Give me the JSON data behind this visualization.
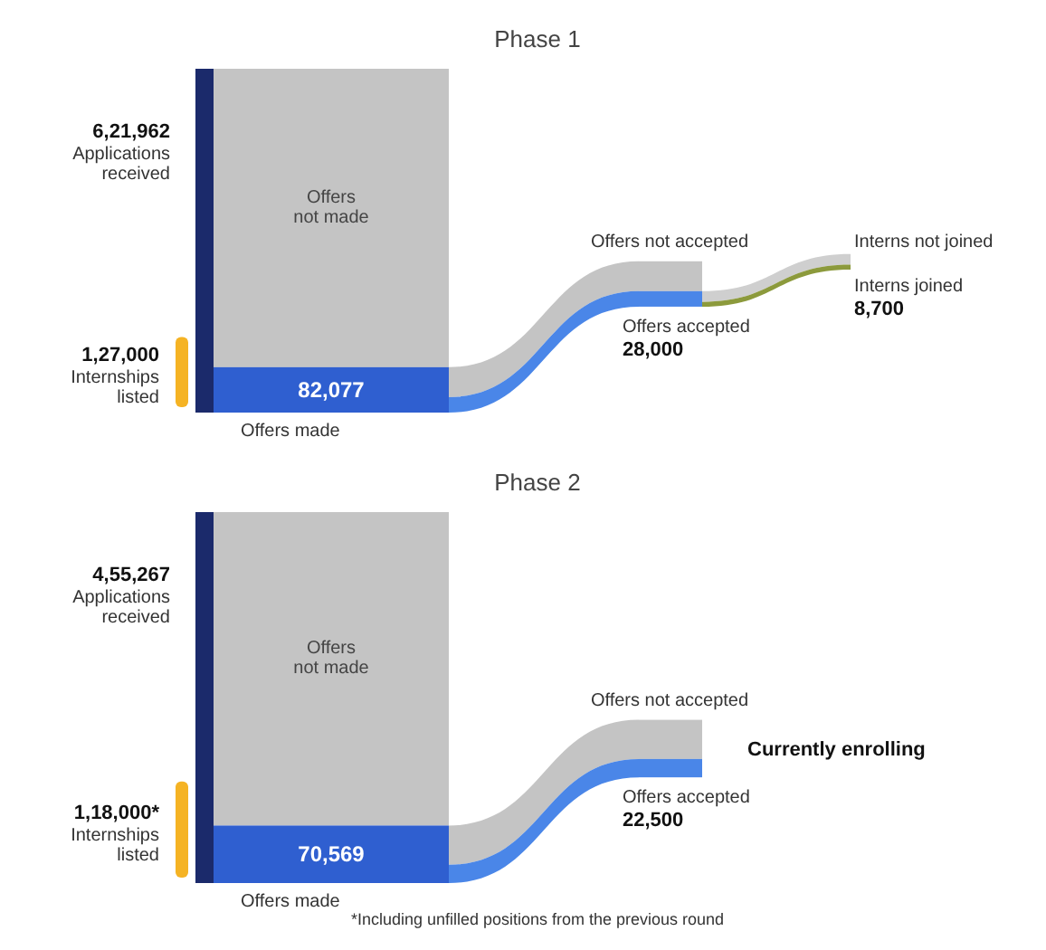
{
  "chart_data": [
    {
      "type": "other",
      "title": "Phase 1",
      "categories": [
        "Applications received",
        "Internships listed",
        "Offers made",
        "Offers not made",
        "Offers accepted",
        "Offers not accepted",
        "Interns joined",
        "Interns not joined"
      ],
      "values": [
        621962,
        127000,
        82077,
        null,
        28000,
        null,
        8700,
        null
      ],
      "value_labels": [
        "6,21,962",
        "1,27,000",
        "82,077",
        null,
        "28,000",
        null,
        "8,700",
        null
      ],
      "colors": [
        "#1b2a6b",
        "#f5b324",
        "#2f5fd0",
        "#c4c4c4",
        "#4a86e8",
        "#c4c4c4",
        "#8c9a3c",
        "#cfcfcf"
      ]
    },
    {
      "type": "other",
      "title": "Phase 2",
      "categories": [
        "Applications received",
        "Internships listed",
        "Offers made",
        "Offers not made",
        "Offers accepted",
        "Offers not accepted"
      ],
      "values": [
        455267,
        118000,
        70569,
        null,
        22500,
        null
      ],
      "value_labels": [
        "4,55,267",
        "1,18,000*",
        "70,569",
        null,
        "22,500",
        null
      ],
      "colors": [
        "#1b2a6b",
        "#f5b324",
        "#2f5fd0",
        "#c4c4c4",
        "#4a86e8",
        "#c4c4c4"
      ],
      "annotations": [
        "Currently enrolling",
        "*Including unfilled positions from the previous round"
      ]
    }
  ]
}
